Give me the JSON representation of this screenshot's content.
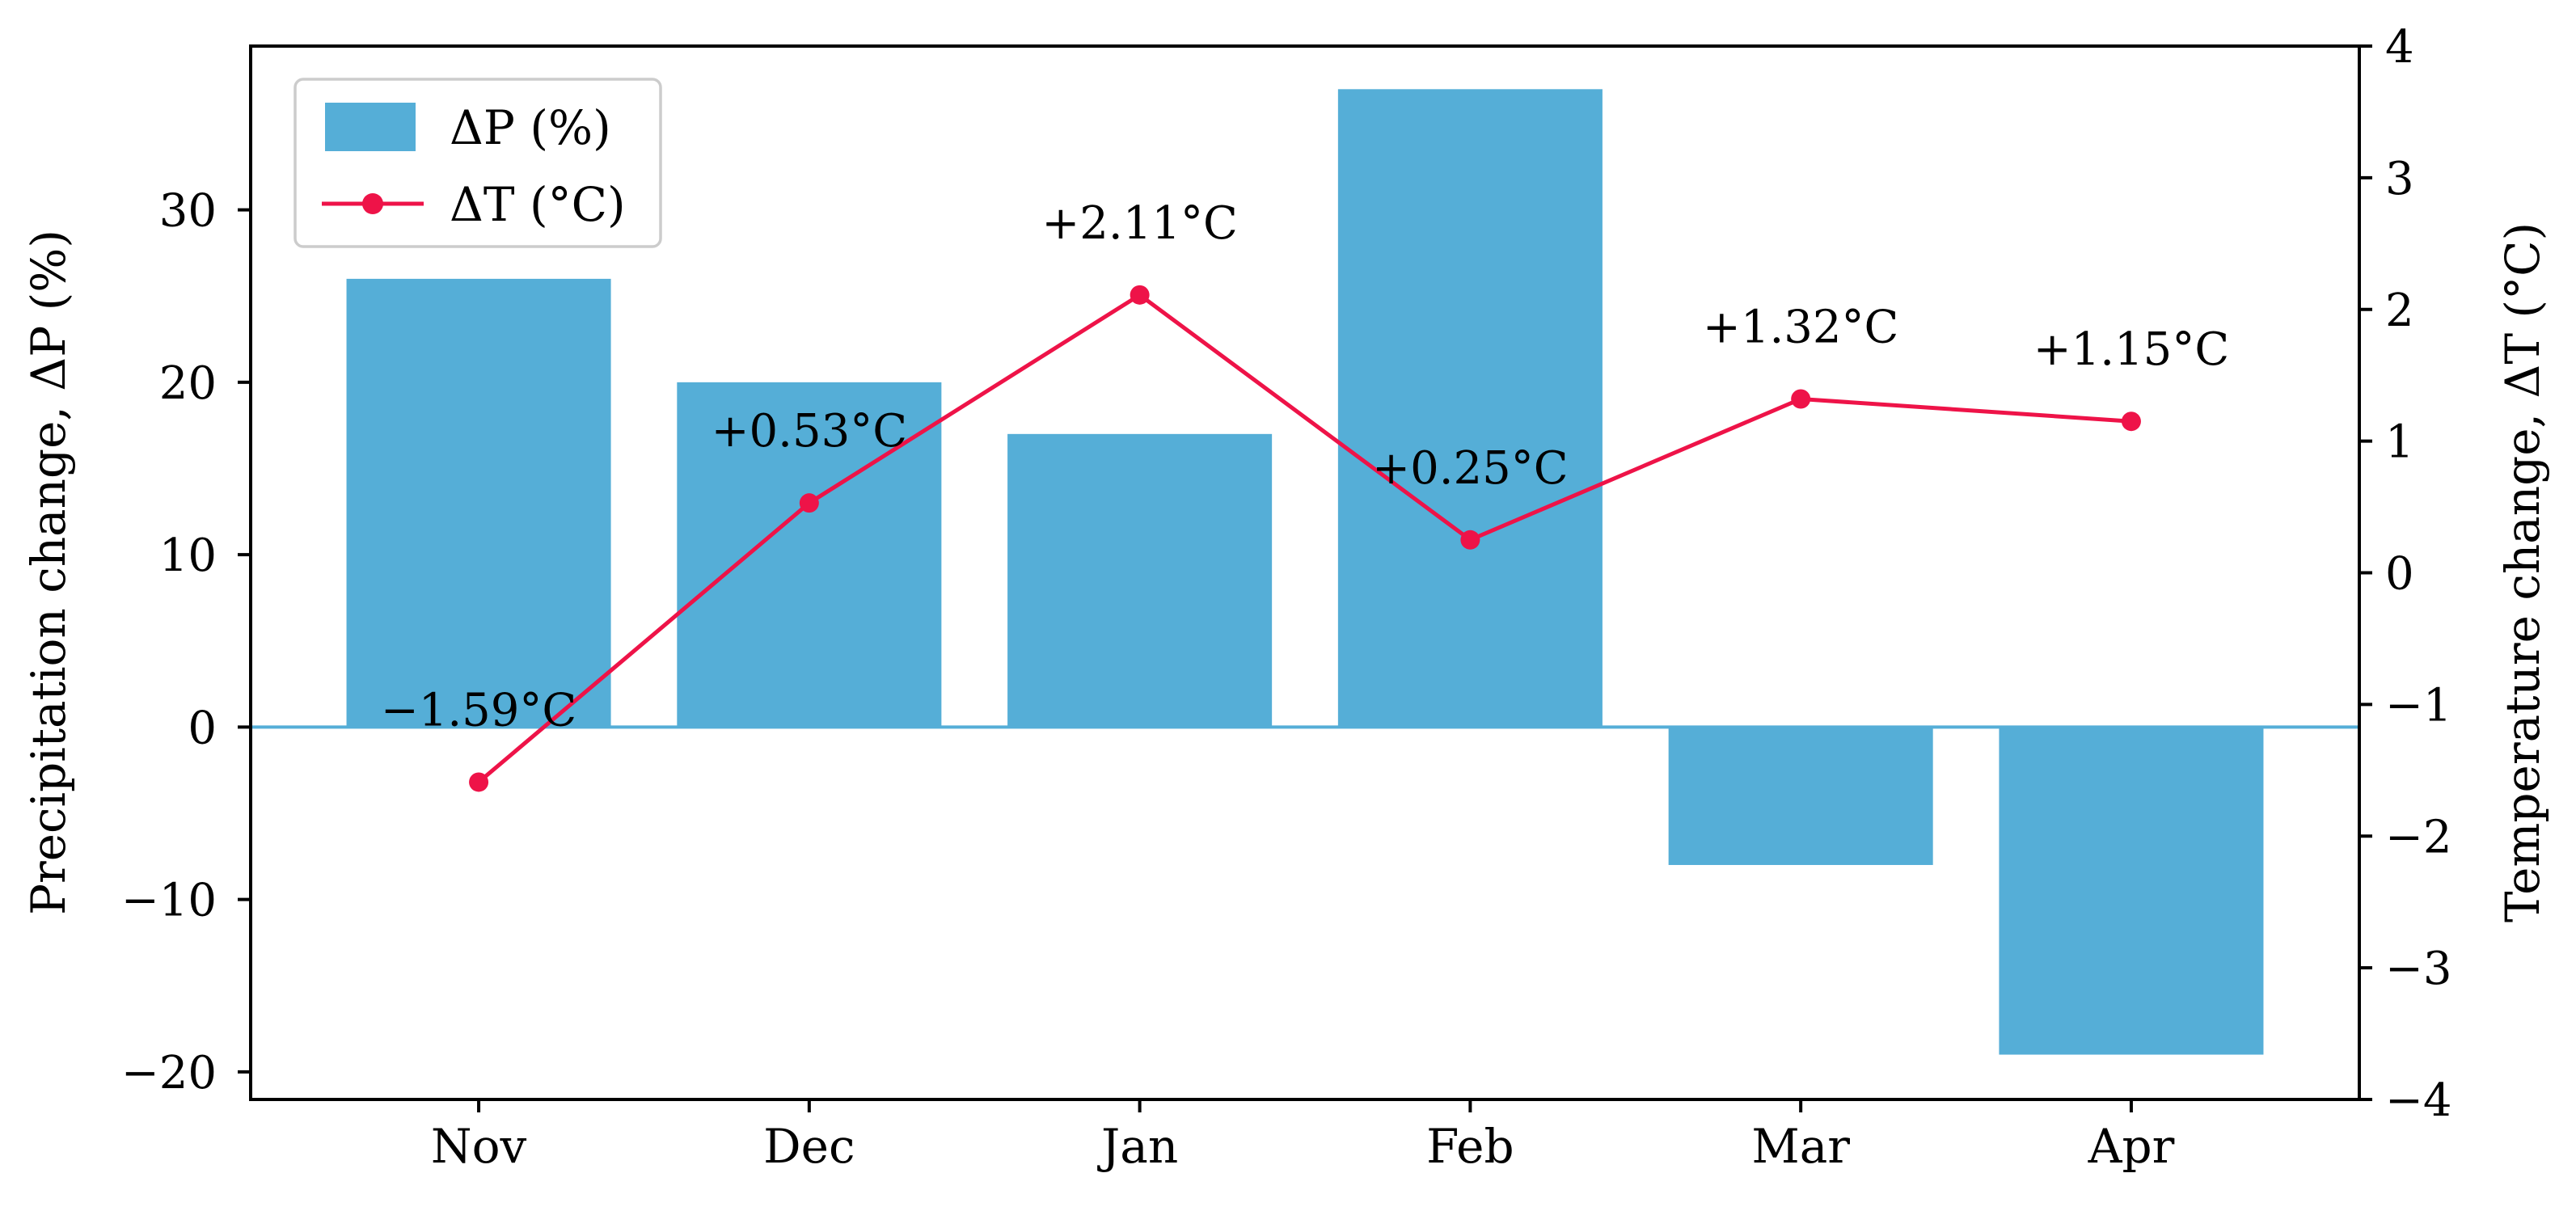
{
  "chart_data": {
    "type": "bar",
    "title": "",
    "categories": [
      "Nov",
      "Dec",
      "Jan",
      "Feb",
      "Mar",
      "Apr"
    ],
    "series": [
      {
        "name": "ΔP (%)",
        "kind": "bar",
        "axis": "left",
        "color": "#55AED7",
        "values": [
          26,
          20,
          17,
          37,
          -8,
          -19
        ]
      },
      {
        "name": "ΔT (°C)",
        "kind": "line",
        "axis": "right",
        "color": "#EE1348",
        "values": [
          -1.59,
          0.53,
          2.11,
          0.25,
          1.32,
          1.15
        ],
        "point_labels": [
          "−1.59°C",
          "+0.53°C",
          "+2.11°C",
          "+0.25°C",
          "+1.32°C",
          "+1.15°C"
        ]
      }
    ],
    "left_axis": {
      "label": "Precipitation change, ΔP (%)",
      "tick_values": [
        30,
        20,
        10,
        0,
        -10,
        -20
      ],
      "tick_labels": [
        "30",
        "20",
        "10",
        "0",
        "−10",
        "−20"
      ],
      "range": [
        -21.6,
        39.5
      ]
    },
    "right_axis": {
      "label": "Temperature change, ΔT (°C)",
      "tick_values": [
        4,
        3,
        2,
        1,
        0,
        -1,
        -2,
        -3,
        -4
      ],
      "tick_labels": [
        "4",
        "3",
        "2",
        "1",
        "0",
        "−1",
        "−2",
        "−3",
        "−4"
      ],
      "range": [
        -4,
        4
      ]
    },
    "zero_line": {
      "axis": "left",
      "value": 0,
      "color": "#55AED7"
    },
    "legend": {
      "position": "upper-left",
      "entries": [
        "ΔP (%)",
        "ΔT (°C)"
      ]
    },
    "grid": false,
    "bar_width_fraction": 0.8
  },
  "colors": {
    "bar": "#55AED7",
    "line": "#EE1348",
    "spine": "#000000",
    "legend_border": "#CCCCCC",
    "background": "#FFFFFF",
    "text": "#000000"
  }
}
